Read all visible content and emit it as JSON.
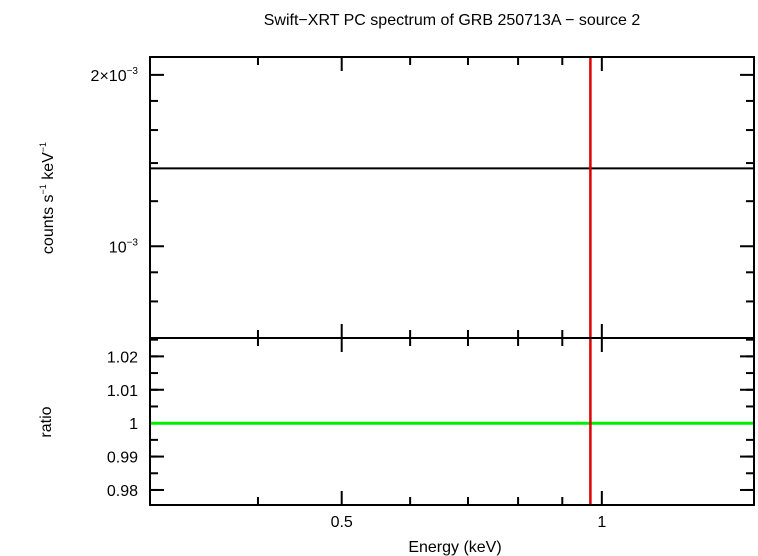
{
  "chart_data": [
    {
      "type": "line",
      "panel": "spectrum",
      "title": "Swift−XRT PC spectrum of GRB 250713A − source 2",
      "ylabel_parts": {
        "a": "counts s",
        "b": "−1",
        "c": " keV",
        "d": "−1"
      },
      "xscale": "log",
      "yscale": "log",
      "xlim": [
        0.3,
        1.5
      ],
      "ylim": [
        0.00069,
        0.00215
      ],
      "ytick_labels": [
        {
          "value": 0.002,
          "base": "2×10",
          "exp": "−3"
        },
        {
          "value": 0.001,
          "base": "10",
          "exp": "−3"
        }
      ],
      "yminor_ticks": [
        0.0008,
        0.0009,
        0.0012,
        0.0014,
        0.0016,
        0.0018
      ],
      "xticks": [
        0.4,
        0.5,
        0.6,
        0.7,
        0.8,
        0.9,
        1.0
      ],
      "series": [
        {
          "values": [
            [
              0.3,
              0.00137
            ],
            [
              1.5,
              0.00137
            ]
          ],
          "color": "#000000"
        }
      ],
      "vline": {
        "x": 0.97,
        "color": "#dd0000"
      }
    },
    {
      "type": "line",
      "panel": "ratio",
      "xlabel": "Energy (keV)",
      "ylabel": "ratio",
      "xscale": "log",
      "xlim": [
        0.3,
        1.5
      ],
      "ylim": [
        0.9755,
        1.0255
      ],
      "xtick_labels": [
        {
          "value": 0.5,
          "label": "0.5"
        },
        {
          "value": 1.0,
          "label": "1"
        }
      ],
      "xticks": [
        0.4,
        0.5,
        0.6,
        0.7,
        0.8,
        0.9,
        1.0
      ],
      "ytick_labels": [
        {
          "value": 1.02,
          "label": "1.02"
        },
        {
          "value": 1.01,
          "label": "1.01"
        },
        {
          "value": 1.0,
          "label": "1"
        },
        {
          "value": 0.99,
          "label": "0.99"
        },
        {
          "value": 0.98,
          "label": "0.98"
        }
      ],
      "yminor_ticks": [
        0.98,
        0.985,
        0.99,
        0.995,
        1.0,
        1.005,
        1.01,
        1.015,
        1.02,
        1.025
      ],
      "series": [
        {
          "values": [
            [
              0.3,
              1.0
            ],
            [
              1.5,
              1.0
            ]
          ],
          "color": "#00ee00"
        }
      ],
      "vline": {
        "x": 0.97,
        "color": "#dd0000"
      }
    }
  ]
}
